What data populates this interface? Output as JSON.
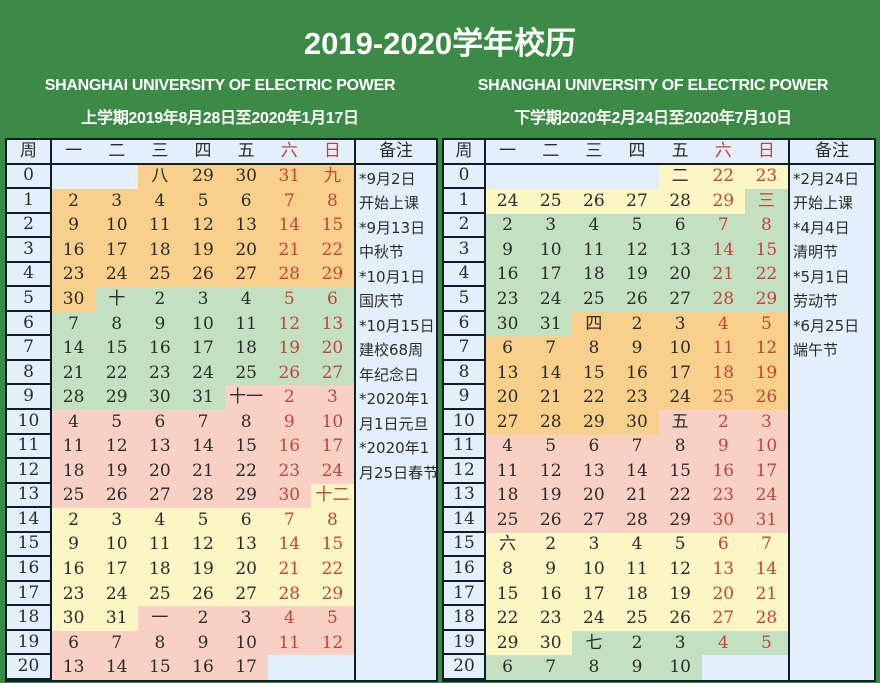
{
  "title": "2019-2020学年校历",
  "colors": {
    "background": "#3b8a45",
    "o": "#f8d08c",
    "g": "#c3e1c1",
    "p": "#f9d1c4",
    "y": "#fcf5c4",
    "b": "#e3f0fb",
    "weekend_text": "#c0453a"
  },
  "headers": [
    "周",
    "一",
    "二",
    "三",
    "四",
    "五",
    "六",
    "日",
    "备注"
  ],
  "semesters": [
    {
      "university": "SHANGHAI UNIVERSITY OF ELECTRIC POWER",
      "term": "上学期2019年8月28日至2020年1月17日",
      "notes": [
        "*9月2日",
        "开始上课",
        "*9月13日",
        "中秋节",
        "*10月1日",
        "国庆节",
        "*10月15日",
        "建校68周",
        "年纪念日",
        "*2020年1",
        "月1日元旦",
        "*2020年1",
        "月25日春节"
      ],
      "rows": [
        [
          [
            "",
            "b"
          ],
          [
            "",
            "b"
          ],
          [
            "八",
            "o"
          ],
          [
            "29",
            "o"
          ],
          [
            "30",
            "o"
          ],
          [
            "31",
            "o"
          ],
          [
            "九",
            "o"
          ]
        ],
        [
          [
            "2",
            "o"
          ],
          [
            "3",
            "o"
          ],
          [
            "4",
            "o"
          ],
          [
            "5",
            "o"
          ],
          [
            "6",
            "o"
          ],
          [
            "7",
            "o"
          ],
          [
            "8",
            "o"
          ]
        ],
        [
          [
            "9",
            "o"
          ],
          [
            "10",
            "o"
          ],
          [
            "11",
            "o"
          ],
          [
            "12",
            "o"
          ],
          [
            "13",
            "o"
          ],
          [
            "14",
            "o"
          ],
          [
            "15",
            "o"
          ]
        ],
        [
          [
            "16",
            "o"
          ],
          [
            "17",
            "o"
          ],
          [
            "18",
            "o"
          ],
          [
            "19",
            "o"
          ],
          [
            "20",
            "o"
          ],
          [
            "21",
            "o"
          ],
          [
            "22",
            "o"
          ]
        ],
        [
          [
            "23",
            "o"
          ],
          [
            "24",
            "o"
          ],
          [
            "25",
            "o"
          ],
          [
            "26",
            "o"
          ],
          [
            "27",
            "o"
          ],
          [
            "28",
            "o"
          ],
          [
            "29",
            "o"
          ]
        ],
        [
          [
            "30",
            "o"
          ],
          [
            "十",
            "g"
          ],
          [
            "2",
            "g"
          ],
          [
            "3",
            "g"
          ],
          [
            "4",
            "g"
          ],
          [
            "5",
            "g"
          ],
          [
            "6",
            "g"
          ]
        ],
        [
          [
            "7",
            "g"
          ],
          [
            "8",
            "g"
          ],
          [
            "9",
            "g"
          ],
          [
            "10",
            "g"
          ],
          [
            "11",
            "g"
          ],
          [
            "12",
            "g"
          ],
          [
            "13",
            "g"
          ]
        ],
        [
          [
            "14",
            "g"
          ],
          [
            "15",
            "g"
          ],
          [
            "16",
            "g"
          ],
          [
            "17",
            "g"
          ],
          [
            "18",
            "g"
          ],
          [
            "19",
            "g"
          ],
          [
            "20",
            "g"
          ]
        ],
        [
          [
            "21",
            "g"
          ],
          [
            "22",
            "g"
          ],
          [
            "23",
            "g"
          ],
          [
            "24",
            "g"
          ],
          [
            "25",
            "g"
          ],
          [
            "26",
            "g"
          ],
          [
            "27",
            "g"
          ]
        ],
        [
          [
            "28",
            "g"
          ],
          [
            "29",
            "g"
          ],
          [
            "30",
            "g"
          ],
          [
            "31",
            "g"
          ],
          [
            "十一",
            "p"
          ],
          [
            "2",
            "p"
          ],
          [
            "3",
            "p"
          ]
        ],
        [
          [
            "4",
            "p"
          ],
          [
            "5",
            "p"
          ],
          [
            "6",
            "p"
          ],
          [
            "7",
            "p"
          ],
          [
            "8",
            "p"
          ],
          [
            "9",
            "p"
          ],
          [
            "10",
            "p"
          ]
        ],
        [
          [
            "11",
            "p"
          ],
          [
            "12",
            "p"
          ],
          [
            "13",
            "p"
          ],
          [
            "14",
            "p"
          ],
          [
            "15",
            "p"
          ],
          [
            "16",
            "p"
          ],
          [
            "17",
            "p"
          ]
        ],
        [
          [
            "18",
            "p"
          ],
          [
            "19",
            "p"
          ],
          [
            "20",
            "p"
          ],
          [
            "21",
            "p"
          ],
          [
            "22",
            "p"
          ],
          [
            "23",
            "p"
          ],
          [
            "24",
            "p"
          ]
        ],
        [
          [
            "25",
            "p"
          ],
          [
            "26",
            "p"
          ],
          [
            "27",
            "p"
          ],
          [
            "28",
            "p"
          ],
          [
            "29",
            "p"
          ],
          [
            "30",
            "p"
          ],
          [
            "十二",
            "y"
          ]
        ],
        [
          [
            "2",
            "y"
          ],
          [
            "3",
            "y"
          ],
          [
            "4",
            "y"
          ],
          [
            "5",
            "y"
          ],
          [
            "6",
            "y"
          ],
          [
            "7",
            "y"
          ],
          [
            "8",
            "y"
          ]
        ],
        [
          [
            "9",
            "y"
          ],
          [
            "10",
            "y"
          ],
          [
            "11",
            "y"
          ],
          [
            "12",
            "y"
          ],
          [
            "13",
            "y"
          ],
          [
            "14",
            "y"
          ],
          [
            "15",
            "y"
          ]
        ],
        [
          [
            "16",
            "y"
          ],
          [
            "17",
            "y"
          ],
          [
            "18",
            "y"
          ],
          [
            "19",
            "y"
          ],
          [
            "20",
            "y"
          ],
          [
            "21",
            "y"
          ],
          [
            "22",
            "y"
          ]
        ],
        [
          [
            "23",
            "y"
          ],
          [
            "24",
            "y"
          ],
          [
            "25",
            "y"
          ],
          [
            "26",
            "y"
          ],
          [
            "27",
            "y"
          ],
          [
            "28",
            "y"
          ],
          [
            "29",
            "y"
          ]
        ],
        [
          [
            "30",
            "y"
          ],
          [
            "31",
            "y"
          ],
          [
            "一",
            "p"
          ],
          [
            "2",
            "p"
          ],
          [
            "3",
            "p"
          ],
          [
            "4",
            "p"
          ],
          [
            "5",
            "p"
          ]
        ],
        [
          [
            "6",
            "p"
          ],
          [
            "7",
            "p"
          ],
          [
            "8",
            "p"
          ],
          [
            "9",
            "p"
          ],
          [
            "10",
            "p"
          ],
          [
            "11",
            "p"
          ],
          [
            "12",
            "p"
          ]
        ],
        [
          [
            "13",
            "p"
          ],
          [
            "14",
            "p"
          ],
          [
            "15",
            "p"
          ],
          [
            "16",
            "p"
          ],
          [
            "17",
            "p"
          ],
          [
            "",
            "b"
          ],
          [
            "",
            "b"
          ]
        ]
      ]
    },
    {
      "university": "SHANGHAI UNIVERSITY OF ELECTRIC POWER",
      "term": "下学期2020年2月24日至2020年7月10日",
      "notes": [
        "*2月24日",
        "开始上课",
        "*4月4日",
        "清明节",
        "*5月1日",
        "劳动节",
        "*6月25日",
        "端午节"
      ],
      "rows": [
        [
          [
            "",
            "b"
          ],
          [
            "",
            "b"
          ],
          [
            "",
            "b"
          ],
          [
            "",
            "b"
          ],
          [
            "二",
            "y"
          ],
          [
            "22",
            "y"
          ],
          [
            "23",
            "y"
          ]
        ],
        [
          [
            "24",
            "y"
          ],
          [
            "25",
            "y"
          ],
          [
            "26",
            "y"
          ],
          [
            "27",
            "y"
          ],
          [
            "28",
            "y"
          ],
          [
            "29",
            "y"
          ],
          [
            "三",
            "g"
          ]
        ],
        [
          [
            "2",
            "g"
          ],
          [
            "3",
            "g"
          ],
          [
            "4",
            "g"
          ],
          [
            "5",
            "g"
          ],
          [
            "6",
            "g"
          ],
          [
            "7",
            "g"
          ],
          [
            "8",
            "g"
          ]
        ],
        [
          [
            "9",
            "g"
          ],
          [
            "10",
            "g"
          ],
          [
            "11",
            "g"
          ],
          [
            "12",
            "g"
          ],
          [
            "13",
            "g"
          ],
          [
            "14",
            "g"
          ],
          [
            "15",
            "g"
          ]
        ],
        [
          [
            "16",
            "g"
          ],
          [
            "17",
            "g"
          ],
          [
            "18",
            "g"
          ],
          [
            "19",
            "g"
          ],
          [
            "20",
            "g"
          ],
          [
            "21",
            "g"
          ],
          [
            "22",
            "g"
          ]
        ],
        [
          [
            "23",
            "g"
          ],
          [
            "24",
            "g"
          ],
          [
            "25",
            "g"
          ],
          [
            "26",
            "g"
          ],
          [
            "27",
            "g"
          ],
          [
            "28",
            "g"
          ],
          [
            "29",
            "g"
          ]
        ],
        [
          [
            "30",
            "g"
          ],
          [
            "31",
            "g"
          ],
          [
            "四",
            "o"
          ],
          [
            "2",
            "o"
          ],
          [
            "3",
            "o"
          ],
          [
            "4",
            "o"
          ],
          [
            "5",
            "o"
          ]
        ],
        [
          [
            "6",
            "o"
          ],
          [
            "7",
            "o"
          ],
          [
            "8",
            "o"
          ],
          [
            "9",
            "o"
          ],
          [
            "10",
            "o"
          ],
          [
            "11",
            "o"
          ],
          [
            "12",
            "o"
          ]
        ],
        [
          [
            "13",
            "o"
          ],
          [
            "14",
            "o"
          ],
          [
            "15",
            "o"
          ],
          [
            "16",
            "o"
          ],
          [
            "17",
            "o"
          ],
          [
            "18",
            "o"
          ],
          [
            "19",
            "o"
          ]
        ],
        [
          [
            "20",
            "o"
          ],
          [
            "21",
            "o"
          ],
          [
            "22",
            "o"
          ],
          [
            "23",
            "o"
          ],
          [
            "24",
            "o"
          ],
          [
            "25",
            "o"
          ],
          [
            "26",
            "o"
          ]
        ],
        [
          [
            "27",
            "o"
          ],
          [
            "28",
            "o"
          ],
          [
            "29",
            "o"
          ],
          [
            "30",
            "o"
          ],
          [
            "五",
            "p"
          ],
          [
            "2",
            "p"
          ],
          [
            "3",
            "p"
          ]
        ],
        [
          [
            "4",
            "p"
          ],
          [
            "5",
            "p"
          ],
          [
            "6",
            "p"
          ],
          [
            "7",
            "p"
          ],
          [
            "8",
            "p"
          ],
          [
            "9",
            "p"
          ],
          [
            "10",
            "p"
          ]
        ],
        [
          [
            "11",
            "p"
          ],
          [
            "12",
            "p"
          ],
          [
            "13",
            "p"
          ],
          [
            "14",
            "p"
          ],
          [
            "15",
            "p"
          ],
          [
            "16",
            "p"
          ],
          [
            "17",
            "p"
          ]
        ],
        [
          [
            "18",
            "p"
          ],
          [
            "19",
            "p"
          ],
          [
            "20",
            "p"
          ],
          [
            "21",
            "p"
          ],
          [
            "22",
            "p"
          ],
          [
            "23",
            "p"
          ],
          [
            "24",
            "p"
          ]
        ],
        [
          [
            "25",
            "p"
          ],
          [
            "26",
            "p"
          ],
          [
            "27",
            "p"
          ],
          [
            "28",
            "p"
          ],
          [
            "29",
            "p"
          ],
          [
            "30",
            "p"
          ],
          [
            "31",
            "p"
          ]
        ],
        [
          [
            "六",
            "y"
          ],
          [
            "2",
            "y"
          ],
          [
            "3",
            "y"
          ],
          [
            "4",
            "y"
          ],
          [
            "5",
            "y"
          ],
          [
            "6",
            "y"
          ],
          [
            "7",
            "y"
          ]
        ],
        [
          [
            "8",
            "y"
          ],
          [
            "9",
            "y"
          ],
          [
            "10",
            "y"
          ],
          [
            "11",
            "y"
          ],
          [
            "12",
            "y"
          ],
          [
            "13",
            "y"
          ],
          [
            "14",
            "y"
          ]
        ],
        [
          [
            "15",
            "y"
          ],
          [
            "16",
            "y"
          ],
          [
            "17",
            "y"
          ],
          [
            "18",
            "y"
          ],
          [
            "19",
            "y"
          ],
          [
            "20",
            "y"
          ],
          [
            "21",
            "y"
          ]
        ],
        [
          [
            "22",
            "y"
          ],
          [
            "23",
            "y"
          ],
          [
            "24",
            "y"
          ],
          [
            "25",
            "y"
          ],
          [
            "26",
            "y"
          ],
          [
            "27",
            "y"
          ],
          [
            "28",
            "y"
          ]
        ],
        [
          [
            "29",
            "y"
          ],
          [
            "30",
            "y"
          ],
          [
            "七",
            "g"
          ],
          [
            "2",
            "g"
          ],
          [
            "3",
            "g"
          ],
          [
            "4",
            "g"
          ],
          [
            "5",
            "g"
          ]
        ],
        [
          [
            "6",
            "g"
          ],
          [
            "7",
            "g"
          ],
          [
            "8",
            "g"
          ],
          [
            "9",
            "g"
          ],
          [
            "10",
            "g"
          ],
          [
            "",
            "b"
          ],
          [
            "",
            "b"
          ]
        ]
      ]
    }
  ]
}
